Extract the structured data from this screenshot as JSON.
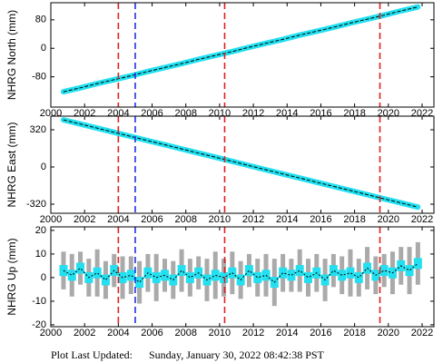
{
  "chart_data": [
    {
      "type": "line",
      "ylabel": "NHRG North (mm)",
      "x": [
        2000.75,
        2001.75,
        2002.75,
        2003.75,
        2004.75,
        2005.75,
        2006.75,
        2007.75,
        2008.75,
        2009.75,
        2010.75,
        2011.75,
        2012.75,
        2013.75,
        2014.75,
        2015.75,
        2016.75,
        2017.75,
        2018.75,
        2019.75,
        2020.75,
        2021.75
      ],
      "series": [
        {
          "color": "#22e0f0",
          "values": [
            -122,
            -111,
            -99,
            -88,
            -77,
            -65,
            -54,
            -43,
            -31,
            -20,
            -9,
            3,
            14,
            25,
            37,
            48,
            59,
            71,
            82,
            93,
            105,
            116
          ]
        }
      ],
      "xlim": [
        2000,
        2022.7
      ],
      "xticks": [
        2000,
        2002,
        2004,
        2006,
        2008,
        2010,
        2012,
        2014,
        2016,
        2018,
        2020,
        2022
      ],
      "ylim": [
        -165,
        128
      ],
      "yticks": [
        -80,
        0,
        80
      ],
      "vlines": [
        {
          "x": 2004.0,
          "color": "#e02020"
        },
        {
          "x": 2005.0,
          "color": "#2030e0"
        },
        {
          "x": 2010.3,
          "color": "#e02020"
        },
        {
          "x": 2019.5,
          "color": "#e02020"
        }
      ]
    },
    {
      "type": "line",
      "ylabel": "NHRG East (mm)",
      "x": [
        2000.75,
        2001.75,
        2002.75,
        2003.75,
        2004.75,
        2005.75,
        2006.75,
        2007.75,
        2008.75,
        2009.75,
        2010.75,
        2011.75,
        2012.75,
        2013.75,
        2014.75,
        2015.75,
        2016.75,
        2017.75,
        2018.75,
        2019.75,
        2020.75,
        2021.75
      ],
      "series": [
        {
          "color": "#22e0f0",
          "values": [
            405,
            369,
            334,
            298,
            262,
            226,
            191,
            155,
            119,
            84,
            48,
            12,
            -24,
            -60,
            -95,
            -131,
            -167,
            -202,
            -238,
            -274,
            -309,
            -345
          ]
        }
      ],
      "xlim": [
        2000,
        2022.7
      ],
      "xticks": [
        2000,
        2002,
        2004,
        2006,
        2008,
        2010,
        2012,
        2014,
        2016,
        2018,
        2020,
        2022
      ],
      "ylim": [
        -398,
        437
      ],
      "yticks": [
        -320,
        0,
        320
      ],
      "vlines": [
        {
          "x": 2004.0,
          "color": "#e02020"
        },
        {
          "x": 2005.0,
          "color": "#2030e0"
        },
        {
          "x": 2010.3,
          "color": "#e02020"
        },
        {
          "x": 2019.5,
          "color": "#e02020"
        }
      ]
    },
    {
      "type": "scatter",
      "ylabel": "NHRG Up (mm)",
      "x": [
        2000.75,
        2001.25,
        2001.75,
        2002.25,
        2002.75,
        2003.25,
        2003.75,
        2004.25,
        2004.75,
        2005.25,
        2005.75,
        2006.25,
        2006.75,
        2007.25,
        2007.75,
        2008.25,
        2008.75,
        2009.25,
        2009.75,
        2010.25,
        2010.75,
        2011.25,
        2011.75,
        2012.25,
        2012.75,
        2013.25,
        2013.75,
        2014.25,
        2014.75,
        2015.25,
        2015.75,
        2016.25,
        2016.75,
        2017.25,
        2017.75,
        2018.25,
        2018.75,
        2019.25,
        2019.75,
        2020.25,
        2020.75,
        2021.25,
        2021.75
      ],
      "series": [
        {
          "color": "#22e0f0",
          "values": [
            3,
            1,
            4,
            0,
            2,
            -1,
            3,
            0,
            1,
            -2,
            2,
            0,
            1,
            -1,
            3,
            0,
            2,
            -1,
            1,
            0,
            2,
            -1,
            3,
            0,
            1,
            -2,
            2,
            1,
            3,
            0,
            2,
            -1,
            3,
            1,
            2,
            0,
            4,
            1,
            3,
            2,
            5,
            3,
            6
          ],
          "errors": [
            8,
            9,
            7,
            8,
            10,
            8,
            7,
            9,
            8,
            9,
            8,
            10,
            7,
            8,
            9,
            8,
            7,
            9,
            10,
            8,
            9,
            8,
            7,
            8,
            9,
            10,
            8,
            7,
            9,
            8,
            8,
            9,
            7,
            8,
            10,
            8,
            9,
            8,
            7,
            9,
            8,
            10,
            9
          ]
        }
      ],
      "xlim": [
        2000,
        2022.7
      ],
      "xticks": [
        2000,
        2002,
        2004,
        2006,
        2008,
        2010,
        2012,
        2014,
        2016,
        2018,
        2020,
        2022
      ],
      "ylim": [
        -20.8,
        21.5
      ],
      "yticks": [
        -20,
        -10,
        0,
        10,
        20
      ],
      "vlines": [
        {
          "x": 2004.0,
          "color": "#e02020"
        },
        {
          "x": 2005.0,
          "color": "#2030e0"
        },
        {
          "x": 2010.3,
          "color": "#e02020"
        },
        {
          "x": 2019.5,
          "color": "#e02020"
        }
      ]
    }
  ],
  "footer": {
    "label": "Plot Last Updated:",
    "timestamp": "Sunday, January 30, 2022 08:42:38 PST"
  }
}
